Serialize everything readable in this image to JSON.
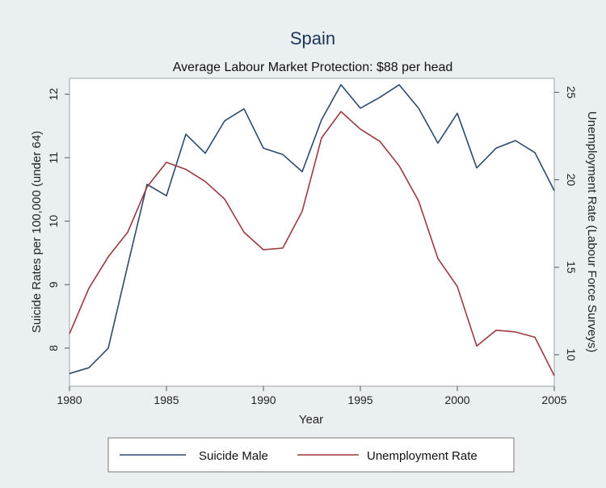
{
  "chart_data": {
    "type": "line",
    "title": "Spain",
    "subtitle": "Average Labour Market Protection: $88 per head",
    "xlabel": "Year",
    "ylabel_left": "Suicide Rates per 100,000 (under 64)",
    "ylabel_right": "Unemployment Rate (Labour Force Surveys)",
    "x": [
      1980,
      1981,
      1982,
      1983,
      1984,
      1985,
      1986,
      1987,
      1988,
      1989,
      1990,
      1991,
      1992,
      1993,
      1994,
      1995,
      1996,
      1997,
      1998,
      1999,
      2000,
      2001,
      2002,
      2003,
      2004,
      2005
    ],
    "x_ticks": [
      "1980",
      "1985",
      "1990",
      "1995",
      "2000",
      "2005"
    ],
    "x_tick_values": [
      1980,
      1985,
      1990,
      1995,
      2000,
      2005
    ],
    "xlim": [
      1980,
      2005
    ],
    "ylim_left": [
      7.4,
      12.25
    ],
    "ylim_right": [
      8.2,
      25.8
    ],
    "y_ticks_left": [
      "8",
      "9",
      "10",
      "11",
      "12"
    ],
    "y_tick_values_left": [
      8,
      9,
      10,
      11,
      12
    ],
    "y_ticks_right": [
      "10",
      "15",
      "20",
      "25"
    ],
    "y_tick_values_right": [
      10,
      15,
      20,
      25
    ],
    "grid": false,
    "legend_position": "bottom",
    "series": [
      {
        "name": "Suicide Male",
        "axis": "left",
        "color": "#2c4a6e",
        "values": [
          7.6,
          7.69,
          8.0,
          9.3,
          10.58,
          10.4,
          11.37,
          11.07,
          11.58,
          11.77,
          11.15,
          11.05,
          10.78,
          11.6,
          12.15,
          11.78,
          11.95,
          12.15,
          11.78,
          11.23,
          11.7,
          10.84,
          11.15,
          11.27,
          11.08,
          10.48
        ]
      },
      {
        "name": "Unemployment Rate",
        "axis": "right",
        "color": "#9b3a3f",
        "values": [
          11.2,
          13.8,
          15.6,
          17.0,
          19.6,
          21.0,
          20.6,
          19.9,
          18.9,
          17.0,
          16.0,
          16.1,
          18.2,
          22.4,
          23.9,
          22.9,
          22.2,
          20.8,
          18.8,
          15.5,
          13.9,
          10.5,
          11.4,
          11.3,
          11.0,
          8.8
        ]
      }
    ]
  }
}
